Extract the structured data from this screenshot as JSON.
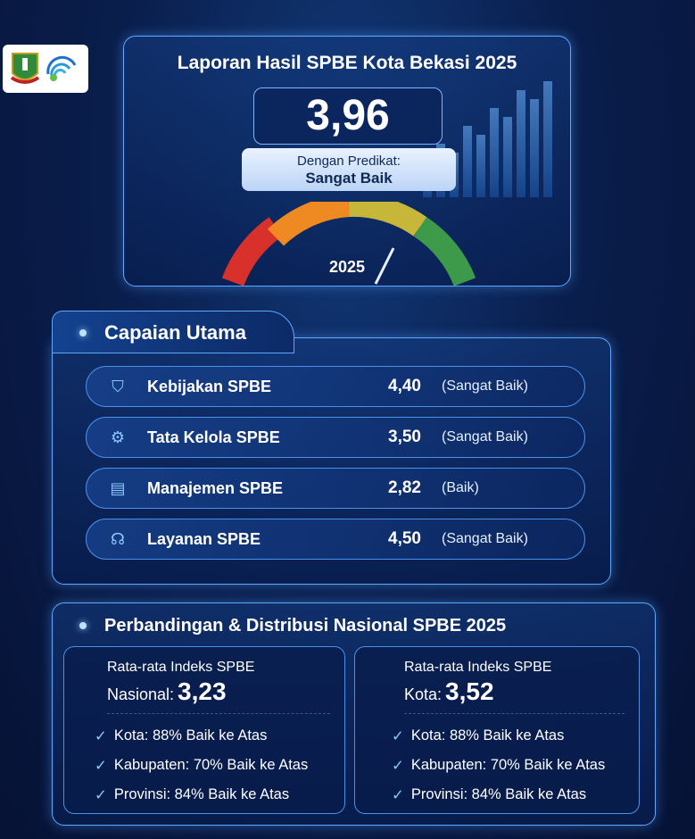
{
  "header": {
    "title": "Laporan Hasil SPBE Kota Bekasi 2025",
    "score": "3,96",
    "predicate_label": "Dengan Predikat:",
    "predicate": "Sangat Baik",
    "gauge_year": "2025"
  },
  "capaian": {
    "title": "Capaian Utama",
    "items": [
      {
        "icon": "shield-check-icon",
        "glyph": "⛉",
        "name": "Kebijakan SPBE",
        "value": "4,40",
        "predicate": "(Sangat Baik)"
      },
      {
        "icon": "gear-icon",
        "glyph": "⚙",
        "name": "Tata Kelola SPBE",
        "value": "3,50",
        "predicate": "(Sangat Baik)"
      },
      {
        "icon": "clipboard-icon",
        "glyph": "▤",
        "name": "Manajemen SPBE",
        "value": "2,82",
        "predicate": "(Baik)"
      },
      {
        "icon": "headset-icon",
        "glyph": "☊",
        "name": "Layanan SPBE",
        "value": "4,50",
        "predicate": "(Sangat Baik)"
      }
    ]
  },
  "perbandingan": {
    "title": "Perbandingan & Distribusi Nasional SPBE 2025",
    "boxes": [
      {
        "label": "Rata-rata Indeks SPBE",
        "sub": "Nasional:",
        "value": "3,23",
        "checks": [
          "Kota: 88% Baik ke Atas",
          "Kabupaten: 70% Baik ke Atas",
          "Provinsi: 84% Baik ke Atas"
        ]
      },
      {
        "label": "Rata-rata Indeks SPBE",
        "sub": "Kota:",
        "value": "3,52",
        "checks": [
          "Kota: 88% Baik ke Atas",
          "Kabupaten: 70% Baik ke Atas",
          "Provinsi: 84% Baik ke Atas"
        ]
      }
    ]
  },
  "colors": {
    "accent": "#5fa8ff",
    "background": "#0a1f4e"
  }
}
